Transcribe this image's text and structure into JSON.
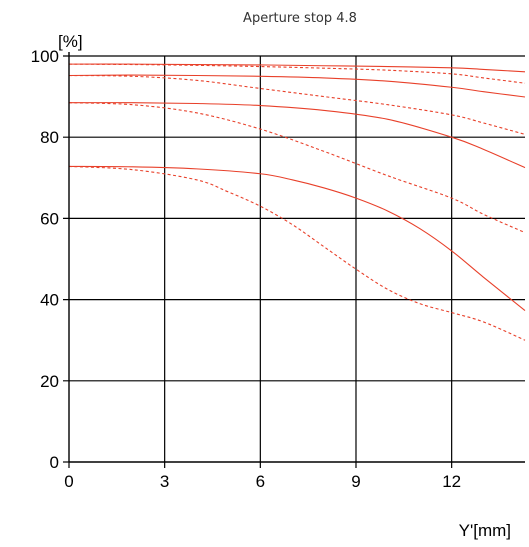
{
  "chart_data": {
    "type": "line",
    "title": "Aperture stop 4.8",
    "ylabel": "[%]",
    "xlabel": "Y'[mm]",
    "xlim": [
      0,
      14.3
    ],
    "ylim": [
      0,
      100
    ],
    "xticks": [
      0,
      3,
      6,
      9,
      12
    ],
    "yticks": [
      0,
      20,
      40,
      60,
      80,
      100
    ],
    "xtick_labels": [
      "0",
      "3",
      "6",
      "9",
      "12"
    ],
    "ytick_labels": [
      "0",
      "20",
      "40",
      "60",
      "80",
      "100"
    ],
    "grid": true,
    "line_color": "#e8402a",
    "series": [
      {
        "style": "solid",
        "x": [
          0,
          2,
          4,
          6,
          8,
          10,
          12,
          13,
          14.3
        ],
        "values": [
          98.0,
          98.0,
          97.9,
          97.8,
          97.6,
          97.4,
          97.1,
          96.7,
          96.1
        ]
      },
      {
        "style": "dashed",
        "x": [
          0,
          2,
          4,
          6,
          8,
          10,
          12,
          13,
          14.3
        ],
        "values": [
          98.0,
          97.9,
          97.7,
          97.4,
          97.0,
          96.5,
          95.6,
          94.6,
          93.3
        ]
      },
      {
        "style": "solid",
        "x": [
          0,
          2,
          4,
          6,
          8,
          10,
          12,
          13,
          14.3
        ],
        "values": [
          95.2,
          95.3,
          95.2,
          95.0,
          94.6,
          93.8,
          92.3,
          91.2,
          89.9
        ]
      },
      {
        "style": "dashed",
        "x": [
          0,
          2,
          4,
          6,
          8,
          10,
          12,
          13,
          14.3
        ],
        "values": [
          95.2,
          95.0,
          94.0,
          92.0,
          90.0,
          88.0,
          85.5,
          83.5,
          80.7
        ]
      },
      {
        "style": "solid",
        "x": [
          0,
          2,
          4,
          6,
          8,
          10,
          12,
          13,
          14.3
        ],
        "values": [
          88.5,
          88.5,
          88.3,
          87.8,
          86.6,
          84.4,
          80.0,
          77.0,
          72.5
        ]
      },
      {
        "style": "dashed",
        "x": [
          0,
          2,
          4,
          6,
          8,
          10,
          12,
          13,
          14.3
        ],
        "values": [
          88.5,
          88.0,
          86.0,
          82.0,
          76.5,
          70.5,
          65.0,
          61.0,
          56.5
        ]
      },
      {
        "style": "solid",
        "x": [
          0,
          2,
          4,
          6,
          7,
          8,
          9,
          10,
          11,
          12,
          13,
          14.3
        ],
        "values": [
          72.8,
          72.7,
          72.2,
          71.0,
          69.5,
          67.5,
          65.0,
          61.8,
          57.5,
          52.0,
          45.5,
          37.3
        ]
      },
      {
        "style": "dashed",
        "x": [
          0,
          2,
          4,
          5,
          6,
          7,
          8,
          9,
          10,
          11,
          12,
          13,
          14.3
        ],
        "values": [
          72.8,
          72.0,
          69.5,
          66.5,
          63.0,
          58.5,
          53.0,
          47.5,
          42.5,
          39.0,
          36.8,
          34.5,
          30.0
        ]
      }
    ]
  }
}
